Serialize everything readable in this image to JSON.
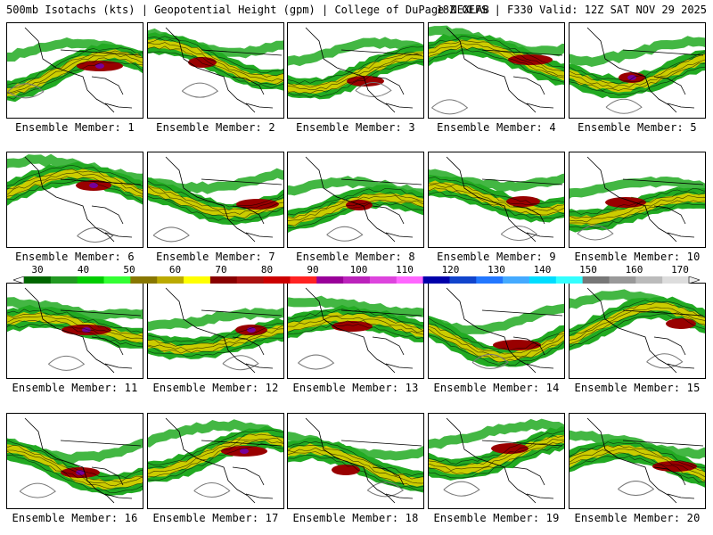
{
  "header": {
    "title_left": "500mb Isotachs (kts) | Geopotential Height (gpm) | College of DuPage NEXLAB",
    "title_right": "18Z GEFS | F330 Valid: 12Z SAT NOV 29 2025"
  },
  "members": [
    {
      "label": "Ensemble Member: 1"
    },
    {
      "label": "Ensemble Member: 2"
    },
    {
      "label": "Ensemble Member: 3"
    },
    {
      "label": "Ensemble Member: 4"
    },
    {
      "label": "Ensemble Member: 5"
    },
    {
      "label": "Ensemble Member: 6"
    },
    {
      "label": "Ensemble Member: 7"
    },
    {
      "label": "Ensemble Member: 8"
    },
    {
      "label": "Ensemble Member: 9"
    },
    {
      "label": "Ensemble Member: 10"
    },
    {
      "label": "Ensemble Member: 11"
    },
    {
      "label": "Ensemble Member: 12"
    },
    {
      "label": "Ensemble Member: 13"
    },
    {
      "label": "Ensemble Member: 14"
    },
    {
      "label": "Ensemble Member: 15"
    },
    {
      "label": "Ensemble Member: 16"
    },
    {
      "label": "Ensemble Member: 17"
    },
    {
      "label": "Ensemble Member: 18"
    },
    {
      "label": "Ensemble Member: 19"
    },
    {
      "label": "Ensemble Member: 20"
    }
  ],
  "legend": {
    "tick_labels": [
      "30",
      "40",
      "50",
      "60",
      "70",
      "80",
      "90",
      "100",
      "110",
      "120",
      "130",
      "140",
      "150",
      "160",
      "170"
    ],
    "colors": [
      "#006600",
      "#229922",
      "#00cc00",
      "#33ff33",
      "#887700",
      "#bbaa00",
      "#ffff00",
      "#880000",
      "#aa1111",
      "#cc0000",
      "#ff2222",
      "#990099",
      "#bb22bb",
      "#dd44dd",
      "#ff66ff",
      "#0000aa",
      "#1144cc",
      "#2277ff",
      "#44aaff",
      "#00ddff",
      "#33ffff",
      "#777777",
      "#999999",
      "#bbbbbb",
      "#dddddd"
    ]
  },
  "colors": {
    "jet_green": "#22aa22",
    "jet_yellow": "#cccc00",
    "jet_red": "#990000",
    "jet_purple": "#770099",
    "outline": "#000000"
  }
}
